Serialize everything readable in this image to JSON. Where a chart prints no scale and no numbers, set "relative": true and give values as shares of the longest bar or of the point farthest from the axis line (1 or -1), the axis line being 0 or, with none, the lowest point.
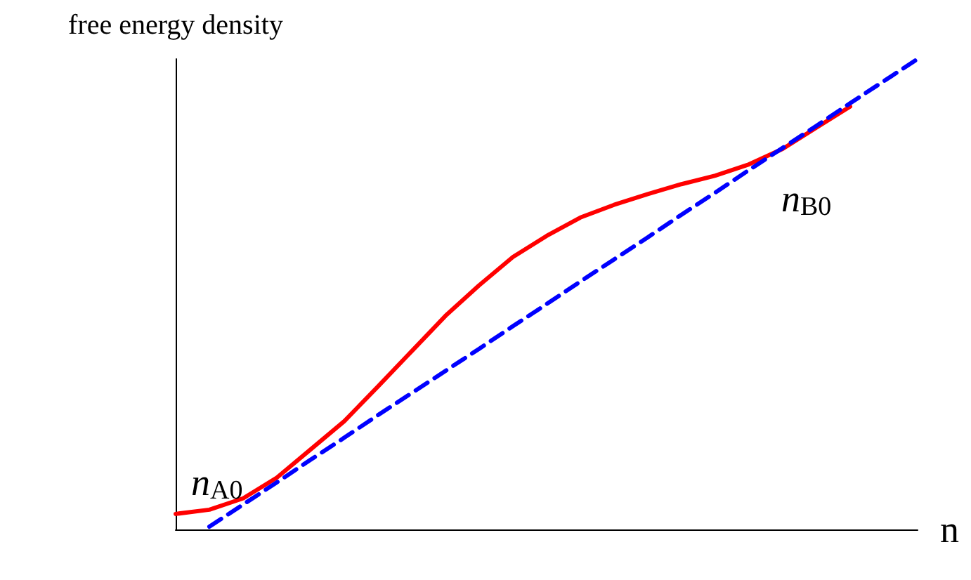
{
  "chart_data": {
    "type": "line",
    "relative": true,
    "xlabel": "n",
    "ylabel": "free energy density",
    "categories": [
      null,
      null,
      null,
      null,
      null,
      null,
      null,
      null,
      null,
      null,
      null,
      null,
      null,
      null,
      null,
      null,
      null,
      null,
      null,
      null,
      null,
      null,
      null
    ],
    "series": [
      {
        "color": "#ff0000",
        "line_style": "solid",
        "values": [
          0.033,
          0.042,
          0.066,
          0.11,
          0.17,
          0.23,
          0.304,
          0.379,
          0.454,
          0.519,
          0.579,
          0.624,
          0.663,
          0.69,
          0.713,
          0.734,
          0.752,
          0.776,
          0.809,
          0.854,
          0.899,
          null,
          null
        ]
      },
      {
        "color": "#0000ff",
        "line_style": "dashed",
        "values": [
          null,
          0.006,
          0.053,
          0.1,
          0.148,
          0.195,
          0.243,
          0.29,
          0.337,
          0.384,
          0.432,
          0.479,
          0.527,
          0.574,
          0.621,
          0.669,
          0.716,
          0.764,
          0.811,
          0.858,
          0.906,
          0.953,
          1.0
        ]
      }
    ],
    "annotations": [
      "n$_{A0}$",
      "n$_{B0}$"
    ],
    "marker": "none"
  }
}
